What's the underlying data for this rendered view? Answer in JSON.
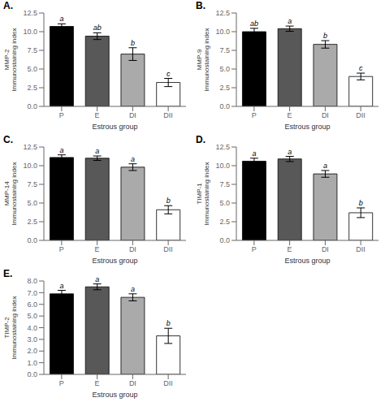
{
  "chart_data": [
    {
      "type": "bar",
      "title": "A.",
      "y_label": "MMP-2\nImmunostaining index",
      "x_label": "Estrous group",
      "categories": [
        "P",
        "E",
        "DI",
        "DII"
      ],
      "values": [
        10.7,
        9.4,
        7.0,
        3.2
      ],
      "errors": [
        0.35,
        0.45,
        0.85,
        0.55
      ],
      "annotations": [
        "a",
        "ab",
        "b",
        "c"
      ],
      "colors": [
        "#000000",
        "#585858",
        "#aaaaaa",
        "#ffffff"
      ],
      "ylim": [
        0,
        12.5
      ],
      "yticks": [
        {
          "value": 0,
          "label": "0.0"
        },
        2.5,
        {
          "value": 5,
          "label": "5.0"
        },
        7.5,
        {
          "value": 10,
          "label": "10.0"
        },
        12.5
      ]
    },
    {
      "type": "bar",
      "title": "B.",
      "y_label": "MMP-9\nImmunostaining index",
      "x_label": "Estrous group",
      "categories": [
        "P",
        "E",
        "DI",
        "DII"
      ],
      "values": [
        10.0,
        10.4,
        8.3,
        4.0
      ],
      "errors": [
        0.45,
        0.35,
        0.5,
        0.45
      ],
      "annotations": [
        "ab",
        "a",
        "b",
        "c"
      ],
      "colors": [
        "#000000",
        "#585858",
        "#aaaaaa",
        "#ffffff"
      ],
      "ylim": [
        0,
        12.5
      ],
      "yticks": [
        {
          "value": 0,
          "label": "0.0"
        },
        2.5,
        {
          "value": 5,
          "label": "5.0"
        },
        7.5,
        {
          "value": 10,
          "label": "10.0"
        },
        12.5
      ]
    },
    {
      "type": "bar",
      "title": "C.",
      "y_label": "MMP-14\nImmunostaining index",
      "x_label": "Estrous group",
      "categories": [
        "P",
        "E",
        "DI",
        "DII"
      ],
      "values": [
        11.1,
        11.0,
        9.8,
        4.1
      ],
      "errors": [
        0.35,
        0.3,
        0.45,
        0.55
      ],
      "annotations": [
        "a",
        "a",
        "a",
        "b"
      ],
      "colors": [
        "#000000",
        "#585858",
        "#aaaaaa",
        "#ffffff"
      ],
      "ylim": [
        0,
        12.5
      ],
      "yticks": [
        {
          "value": 0,
          "label": "0.0"
        },
        2.5,
        {
          "value": 5,
          "label": "5.0"
        },
        7.5,
        {
          "value": 10,
          "label": "10.0"
        },
        12.5
      ]
    },
    {
      "type": "bar",
      "title": "D.",
      "y_label": "TIMP-1\nImmunostaining index",
      "x_label": "Estrous group",
      "categories": [
        "P",
        "E",
        "DI",
        "DII"
      ],
      "values": [
        10.6,
        10.9,
        8.9,
        3.7
      ],
      "errors": [
        0.4,
        0.35,
        0.45,
        0.65
      ],
      "annotations": [
        "a",
        "a",
        "a",
        "b"
      ],
      "colors": [
        "#000000",
        "#585858",
        "#aaaaaa",
        "#ffffff"
      ],
      "ylim": [
        0,
        12.5
      ],
      "yticks": [
        {
          "value": 0,
          "label": "0.0"
        },
        2.5,
        {
          "value": 5,
          "label": "5.0"
        },
        7.5,
        {
          "value": 10,
          "label": "10.0"
        },
        12.5
      ]
    },
    {
      "type": "bar",
      "title": "E.",
      "y_label": "TIMP-2\nImmunostaining index",
      "x_label": "Estrous group",
      "categories": [
        "P",
        "E",
        "DI",
        "DII"
      ],
      "values": [
        6.9,
        7.5,
        6.6,
        3.3
      ],
      "errors": [
        0.3,
        0.25,
        0.3,
        0.65
      ],
      "annotations": [
        "a",
        "a",
        "a",
        "b"
      ],
      "colors": [
        "#000000",
        "#585858",
        "#aaaaaa",
        "#ffffff"
      ],
      "ylim": [
        0,
        8
      ],
      "yticks": [
        {
          "value": 0,
          "label": "0.0"
        },
        {
          "value": 1,
          "label": "1.0"
        },
        {
          "value": 2,
          "label": "2.0"
        },
        {
          "value": 3,
          "label": "3.0"
        },
        {
          "value": 4,
          "label": "4.0"
        },
        {
          "value": 5,
          "label": "5.0"
        },
        {
          "value": 6,
          "label": "6.0"
        },
        {
          "value": 7,
          "label": "7.0"
        },
        {
          "value": 8,
          "label": "8.0"
        }
      ]
    }
  ]
}
